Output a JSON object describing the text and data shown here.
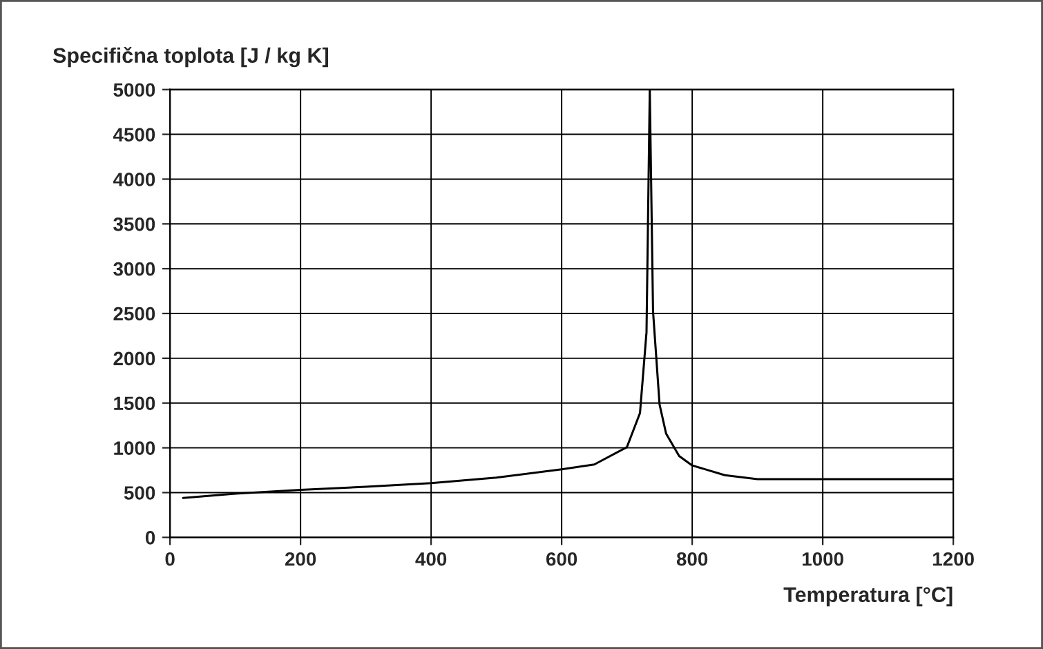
{
  "chart_data": {
    "type": "line",
    "xlabel": "Temperatura [°C]",
    "ylabel": "Specifična toplota [J / kg K]",
    "x": [
      20,
      100,
      200,
      300,
      400,
      500,
      600,
      650,
      700,
      720,
      730,
      735,
      740,
      750,
      760,
      780,
      800,
      850,
      900,
      1200
    ],
    "series": [
      {
        "color": "#000000",
        "values": [
          440,
          488,
          530,
          565,
          606,
          667,
          760,
          814,
          1008,
          1388,
          2291,
          5000,
          2525,
          1483,
          1159,
          909,
          803,
          695,
          650,
          650
        ]
      }
    ],
    "xlim": [
      0,
      1200
    ],
    "xticks": [
      0,
      200,
      400,
      600,
      800,
      1000,
      1200
    ],
    "ylim": [
      0,
      5000
    ],
    "yticks": [
      0,
      500,
      1000,
      1500,
      2000,
      2500,
      3000,
      3500,
      4000,
      4500,
      5000
    ],
    "grid": true,
    "legend": false,
    "marker": "none",
    "line_style": "solid"
  }
}
